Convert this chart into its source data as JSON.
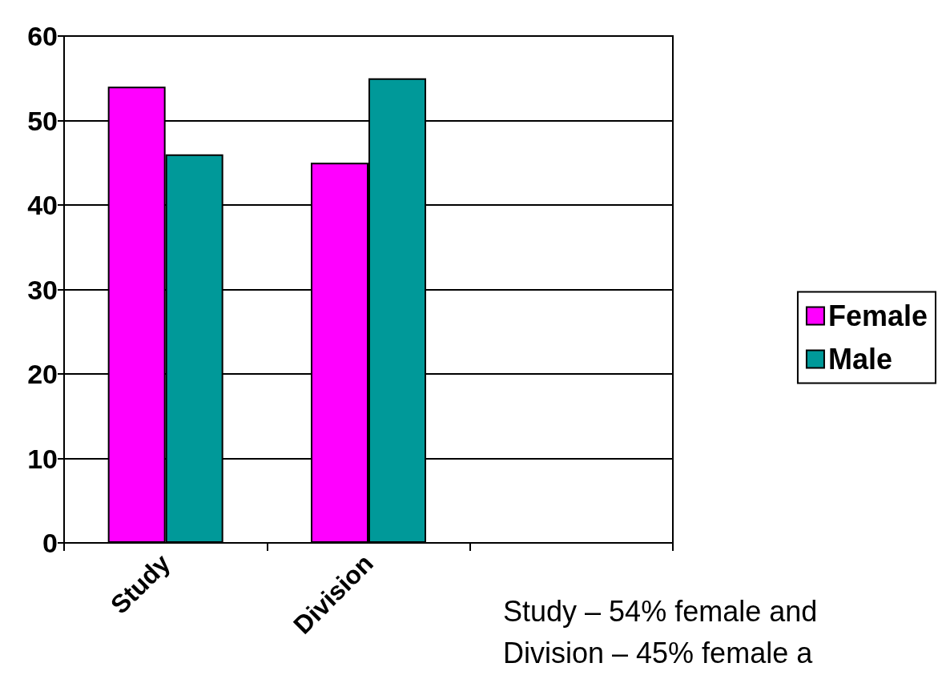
{
  "chart_data": {
    "type": "bar",
    "categories": [
      "Study",
      "Division",
      null
    ],
    "series": [
      {
        "name": "Female",
        "color": "#ff00ff",
        "values": [
          54,
          45,
          null
        ]
      },
      {
        "name": "Male",
        "color": "#009999",
        "values": [
          46,
          55,
          null
        ]
      }
    ],
    "ylim": [
      0,
      60
    ],
    "yticks": [
      0,
      10,
      20,
      30,
      40,
      50,
      60
    ],
    "grid": "y",
    "legend": "right",
    "annotations": [
      "Study – 54% female and",
      "Division – 45% female a"
    ]
  }
}
